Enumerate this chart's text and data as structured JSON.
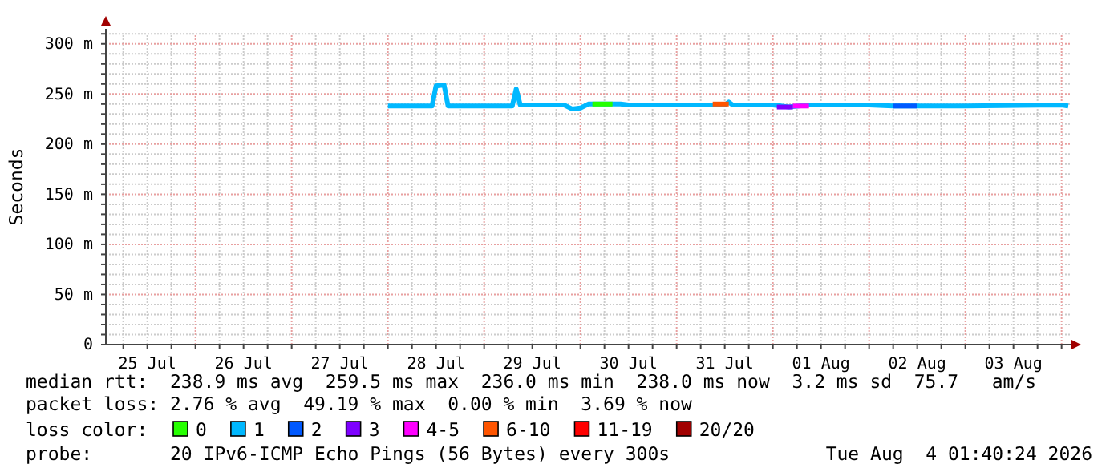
{
  "chart_data": {
    "type": "line",
    "ylabel": "Seconds",
    "legend_title": "loss color:",
    "legend": "bottom",
    "grid": true,
    "marker": "none",
    "line_style": "solid",
    "xlim": [
      "2026-07-25T01:40",
      "2026-08-04T01:40"
    ],
    "xticks": [
      {
        "value": "2026-07-25T06:00",
        "label": null
      },
      {
        "value": "2026-07-25T12:00",
        "label": "25 Jul"
      },
      {
        "value": "2026-07-25T18:00",
        "label": null
      },
      {
        "value": "2026-07-26T00:00",
        "label": null
      },
      {
        "value": "2026-07-26T06:00",
        "label": null
      },
      {
        "value": "2026-07-26T12:00",
        "label": "26 Jul"
      },
      {
        "value": "2026-07-26T18:00",
        "label": null
      },
      {
        "value": "2026-07-27T00:00",
        "label": null
      },
      {
        "value": "2026-07-27T06:00",
        "label": null
      },
      {
        "value": "2026-07-27T12:00",
        "label": "27 Jul"
      },
      {
        "value": "2026-07-27T18:00",
        "label": null
      },
      {
        "value": "2026-07-28T00:00",
        "label": null
      },
      {
        "value": "2026-07-28T06:00",
        "label": null
      },
      {
        "value": "2026-07-28T12:00",
        "label": "28 Jul"
      },
      {
        "value": "2026-07-28T18:00",
        "label": null
      },
      {
        "value": "2026-07-29T00:00",
        "label": null
      },
      {
        "value": "2026-07-29T06:00",
        "label": null
      },
      {
        "value": "2026-07-29T12:00",
        "label": "29 Jul"
      },
      {
        "value": "2026-07-29T18:00",
        "label": null
      },
      {
        "value": "2026-07-30T00:00",
        "label": null
      },
      {
        "value": "2026-07-30T06:00",
        "label": null
      },
      {
        "value": "2026-07-30T12:00",
        "label": "30 Jul"
      },
      {
        "value": "2026-07-30T18:00",
        "label": null
      },
      {
        "value": "2026-07-31T00:00",
        "label": null
      },
      {
        "value": "2026-07-31T06:00",
        "label": null
      },
      {
        "value": "2026-07-31T12:00",
        "label": "31 Jul"
      },
      {
        "value": "2026-07-31T18:00",
        "label": null
      },
      {
        "value": "2026-08-01T00:00",
        "label": null
      },
      {
        "value": "2026-08-01T06:00",
        "label": null
      },
      {
        "value": "2026-08-01T12:00",
        "label": "01 Aug"
      },
      {
        "value": "2026-08-01T18:00",
        "label": null
      },
      {
        "value": "2026-08-02T00:00",
        "label": null
      },
      {
        "value": "2026-08-02T06:00",
        "label": null
      },
      {
        "value": "2026-08-02T12:00",
        "label": "02 Aug"
      },
      {
        "value": "2026-08-02T18:00",
        "label": null
      },
      {
        "value": "2026-08-03T00:00",
        "label": null
      },
      {
        "value": "2026-08-03T06:00",
        "label": null
      },
      {
        "value": "2026-08-03T12:00",
        "label": "03 Aug"
      },
      {
        "value": "2026-08-03T18:00",
        "label": null
      },
      {
        "value": "2026-08-04T00:00",
        "label": null
      }
    ],
    "ylim": [
      0,
      315
    ],
    "yticks": [
      0,
      {
        "value": 10,
        "label": null
      },
      {
        "value": 20,
        "label": null
      },
      {
        "value": 30,
        "label": null
      },
      {
        "value": 40,
        "label": null
      },
      {
        "value": 50,
        "label": "50 m"
      },
      {
        "value": 60,
        "label": null
      },
      {
        "value": 70,
        "label": null
      },
      {
        "value": 80,
        "label": null
      },
      {
        "value": 90,
        "label": null
      },
      {
        "value": 100,
        "label": "100 m"
      },
      {
        "value": 110,
        "label": null
      },
      {
        "value": 120,
        "label": null
      },
      {
        "value": 130,
        "label": null
      },
      {
        "value": 140,
        "label": null
      },
      {
        "value": 150,
        "label": "150 m"
      },
      {
        "value": 160,
        "label": null
      },
      {
        "value": 170,
        "label": null
      },
      {
        "value": 180,
        "label": null
      },
      {
        "value": 190,
        "label": null
      },
      {
        "value": 200,
        "label": "200 m"
      },
      {
        "value": 210,
        "label": null
      },
      {
        "value": 220,
        "label": null
      },
      {
        "value": 230,
        "label": null
      },
      {
        "value": 240,
        "label": null
      },
      {
        "value": 250,
        "label": "250 m"
      },
      {
        "value": 260,
        "label": null
      },
      {
        "value": 270,
        "label": null
      },
      {
        "value": 280,
        "label": null
      },
      {
        "value": 290,
        "label": null
      },
      {
        "value": 300,
        "label": "300 m"
      },
      {
        "value": 310,
        "label": null
      }
    ],
    "series": [
      {
        "name": "0",
        "color": "#26ff00",
        "x": [
          "2026-07-30T03:00",
          "2026-07-30T08:00"
        ],
        "values": [
          240,
          240
        ]
      },
      {
        "name": "1",
        "color": "#00b8ff",
        "x": [
          "2026-07-28T00:00",
          "2026-07-28T11:00",
          "2026-07-28T12:00",
          "2026-07-28T14:00",
          "2026-07-28T15:00",
          "2026-07-29T07:00",
          "2026-07-29T08:00",
          "2026-07-29T09:00",
          "2026-07-29T20:00",
          "2026-07-29T22:00",
          "2026-07-30T00:00",
          "2026-07-30T02:00",
          "2026-07-30T10:00",
          "2026-07-30T12:00",
          "2026-07-31T12:00",
          "2026-07-31T13:00",
          "2026-07-31T14:00",
          "2026-08-01T00:00",
          "2026-08-01T04:00",
          "2026-08-01T09:00",
          "2026-08-02T00:00",
          "2026-08-02T06:00",
          "2026-08-03T00:00",
          "2026-08-04T00:00",
          "2026-08-04T01:40"
        ],
        "values": [
          238,
          238,
          258,
          259,
          238,
          238,
          255,
          239,
          239,
          235,
          236,
          240,
          240,
          239,
          239,
          242,
          239,
          239,
          237,
          239,
          239,
          238,
          238,
          239,
          238
        ]
      },
      {
        "name": "2",
        "color": "#0059ff",
        "x": [
          "2026-08-02T06:00",
          "2026-08-02T12:00"
        ],
        "values": [
          238,
          238
        ]
      },
      {
        "name": "3",
        "color": "#7e00ff",
        "x": [
          "2026-08-01T01:00",
          "2026-08-01T05:00"
        ],
        "values": [
          237,
          237
        ]
      },
      {
        "name": "4-5",
        "color": "#ff00ff",
        "x": [
          "2026-08-01T05:00",
          "2026-08-01T09:00"
        ],
        "values": [
          238,
          238
        ]
      },
      {
        "name": "6-10",
        "color": "#ff5500",
        "x": [
          "2026-07-31T09:00",
          "2026-07-31T13:00"
        ],
        "values": [
          240,
          240
        ]
      },
      {
        "name": "11-19",
        "color": "#ff0000"
      },
      {
        "name": "20/20",
        "color": "#a10000"
      }
    ],
    "annotations": [
      "median rtt:  238.9 ms avg  259.5 ms max  236.0 ms min  238.0 ms now  3.2 ms sd  75.7   am/s",
      "packet loss: 2.76 % avg  49.19 % max  0.00 % min  3.69 % now",
      "probe:       20 IPv6-ICMP Echo Pings (56 Bytes) every 300s",
      "Tue Aug  4 01:40:24 2026"
    ]
  }
}
